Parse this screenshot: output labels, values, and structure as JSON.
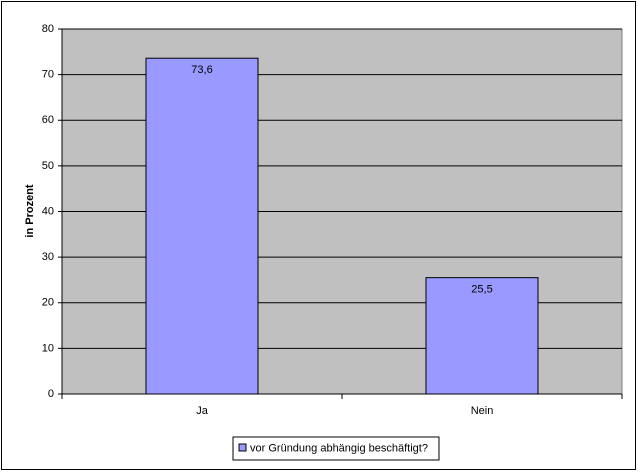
{
  "chart_data": {
    "type": "bar",
    "y_label": "in Prozent",
    "categories": [
      "Ja",
      "Nein"
    ],
    "series": [
      {
        "name": "vor Gründung abhängig beschäftigt?",
        "color": "#9999ff",
        "values": [
          73.6,
          25.5
        ],
        "value_labels": [
          "73,6",
          "25,5"
        ]
      }
    ],
    "ylim": [
      0,
      80
    ],
    "yticks": [
      0,
      10,
      20,
      30,
      40,
      50,
      60,
      70,
      80
    ],
    "grid": true,
    "legend": "bottom",
    "plot_background": "#c0c0c0"
  }
}
